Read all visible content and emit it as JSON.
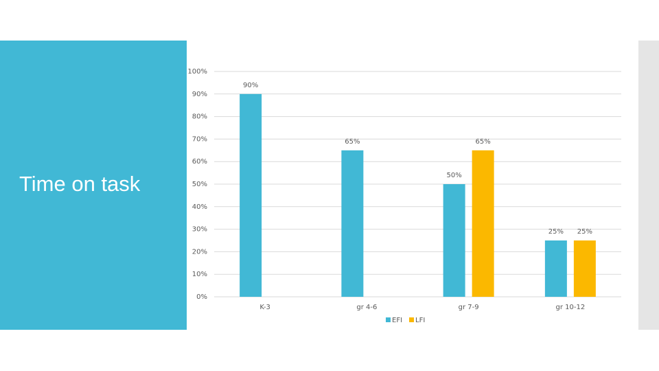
{
  "slide": {
    "title": "Time on task"
  },
  "chart_data": {
    "type": "bar",
    "categories": [
      "K-3",
      "gr 4-6",
      "gr 7-9",
      "gr 10-12"
    ],
    "series": [
      {
        "name": "EFI",
        "color": "#41b8d5",
        "values": [
          90,
          65,
          50,
          25
        ],
        "value_labels": [
          "90%",
          "65%",
          "50%",
          "25%"
        ]
      },
      {
        "name": "LFI",
        "color": "#fbb800",
        "values": [
          null,
          null,
          65,
          25
        ],
        "value_labels": [
          null,
          null,
          "65%",
          "25%"
        ]
      }
    ],
    "ylim": [
      0,
      100
    ],
    "yticks": [
      {
        "value": 0,
        "label": "0%"
      },
      {
        "value": 10,
        "label": "10%"
      },
      {
        "value": 20,
        "label": "20%"
      },
      {
        "value": 30,
        "label": "30%"
      },
      {
        "value": 40,
        "label": "40%"
      },
      {
        "value": 50,
        "label": "50%"
      },
      {
        "value": 60,
        "label": "60%"
      },
      {
        "value": 70,
        "label": "70%"
      },
      {
        "value": 80,
        "label": "80%"
      },
      {
        "value": 90,
        "label": "90%"
      },
      {
        "value": 100,
        "label": "100%"
      }
    ],
    "grid": true,
    "legend": "bottom"
  }
}
